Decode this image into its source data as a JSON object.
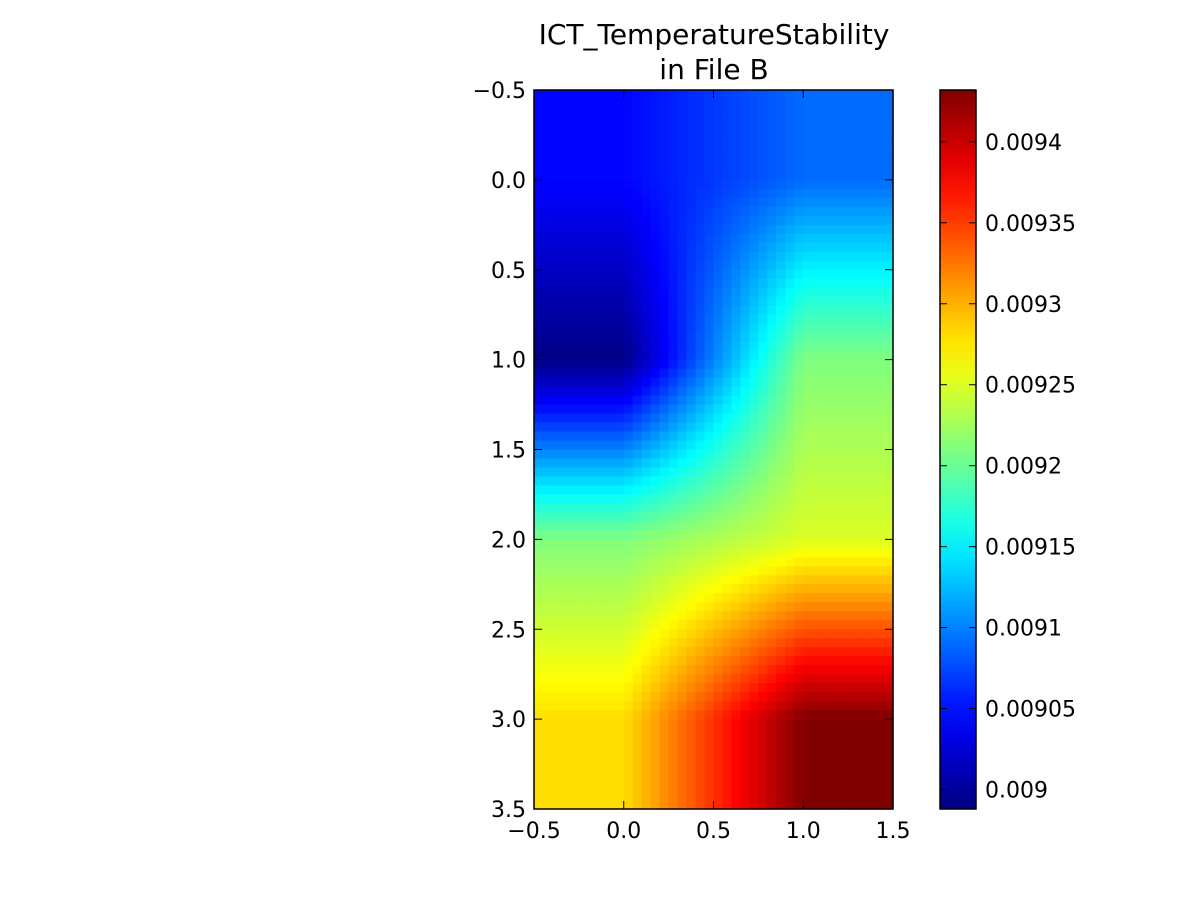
{
  "chart_data": {
    "type": "heatmap",
    "title_lines": [
      "ICT_TemperatureStability",
      "in File B"
    ],
    "xlabel": "",
    "ylabel": "",
    "xlim": [
      -0.5,
      1.5
    ],
    "ylim": [
      3.5,
      -0.5
    ],
    "x_ticks": [
      -0.5,
      0.0,
      0.5,
      1.0,
      1.5
    ],
    "x_tick_labels": [
      "−0.5",
      "0.0",
      "0.5",
      "1.0",
      "1.5"
    ],
    "y_ticks": [
      -0.5,
      0.0,
      0.5,
      1.0,
      1.5,
      2.0,
      2.5,
      3.0,
      3.5
    ],
    "y_tick_labels": [
      "−0.5",
      "0.0",
      "0.5",
      "1.0",
      "1.5",
      "2.0",
      "2.5",
      "3.0",
      "3.5"
    ],
    "x_centers": [
      0,
      1
    ],
    "y_centers": [
      0,
      1,
      2,
      3
    ],
    "values": [
      [
        0.009045,
        0.00909
      ],
      [
        0.00899,
        0.00921
      ],
      [
        0.00921,
        0.00925
      ],
      [
        0.00928,
        0.009432
      ]
    ],
    "interpolation": "bilinear",
    "colormap": "jet",
    "colorbar": {
      "vmin": 0.008988,
      "vmax": 0.009432,
      "ticks": [
        0.009,
        0.00905,
        0.0091,
        0.00915,
        0.0092,
        0.00925,
        0.0093,
        0.00935,
        0.0094
      ],
      "tick_labels": [
        "0.009",
        "0.00905",
        "0.0091",
        "0.00915",
        "0.0092",
        "0.00925",
        "0.0093",
        "0.00935",
        "0.0094"
      ]
    },
    "grid": false,
    "legend": "none"
  }
}
